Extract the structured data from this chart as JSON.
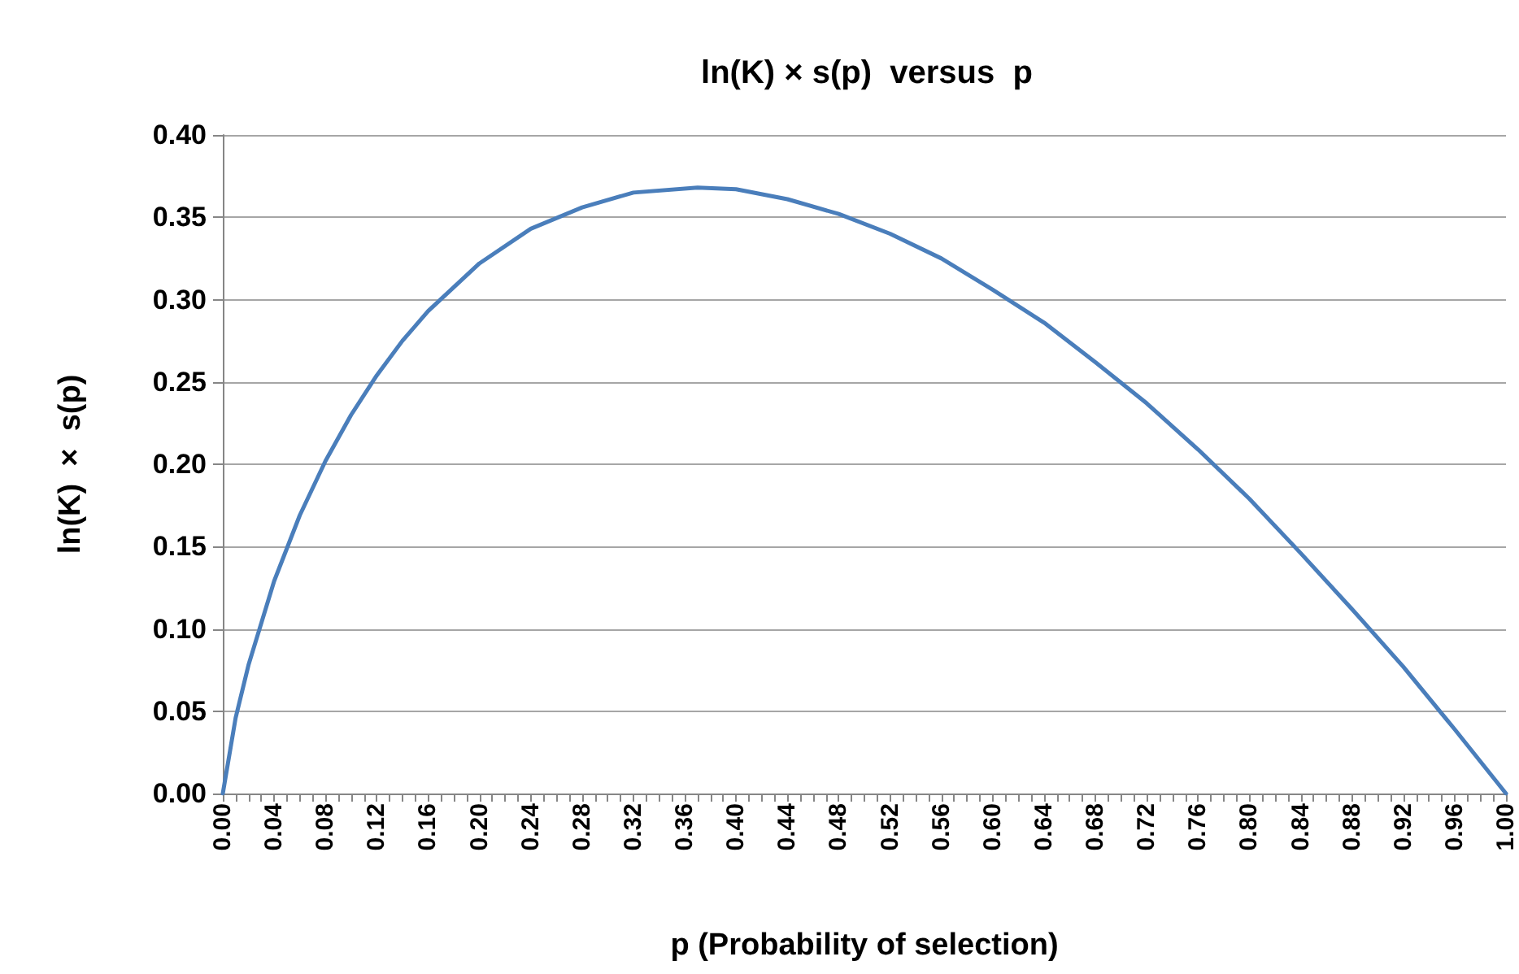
{
  "chart_data": {
    "type": "line",
    "title": "ln(K) × s(p)  versus  p",
    "xlabel": "p (Probability of selection)",
    "ylabel": "ln(K)  ×  s(p)",
    "series": [
      {
        "color": "#4a7ebb",
        "x": [
          0,
          0.01,
          0.02,
          0.04,
          0.06,
          0.08,
          0.1,
          0.12,
          0.14,
          0.16,
          0.2,
          0.24,
          0.28,
          0.32,
          0.37,
          0.4,
          0.44,
          0.48,
          0.52,
          0.56,
          0.6,
          0.64,
          0.68,
          0.72,
          0.76,
          0.8,
          0.84,
          0.88,
          0.92,
          0.96,
          1.0
        ],
        "values": [
          0,
          0.046,
          0.078,
          0.129,
          0.169,
          0.202,
          0.23,
          0.254,
          0.275,
          0.293,
          0.322,
          0.343,
          0.356,
          0.365,
          0.368,
          0.367,
          0.361,
          0.352,
          0.34,
          0.325,
          0.306,
          0.286,
          0.262,
          0.237,
          0.209,
          0.179,
          0.146,
          0.112,
          0.077,
          0.039,
          0
        ]
      }
    ],
    "xlim": [
      0,
      1
    ],
    "xticks": [
      {
        "value": 0,
        "label": "0.00"
      },
      {
        "value": 0.01,
        "label": null
      },
      {
        "value": 0.02,
        "label": null
      },
      {
        "value": 0.03,
        "label": null
      },
      {
        "value": 0.04,
        "label": "0.04"
      },
      {
        "value": 0.05,
        "label": null
      },
      {
        "value": 0.06,
        "label": null
      },
      {
        "value": 0.07,
        "label": null
      },
      {
        "value": 0.08,
        "label": "0.08"
      },
      {
        "value": 0.09,
        "label": null
      },
      {
        "value": 0.1,
        "label": null
      },
      {
        "value": 0.11,
        "label": null
      },
      {
        "value": 0.12,
        "label": "0.12"
      },
      {
        "value": 0.13,
        "label": null
      },
      {
        "value": 0.14,
        "label": null
      },
      {
        "value": 0.15,
        "label": null
      },
      {
        "value": 0.16,
        "label": "0.16"
      },
      {
        "value": 0.17,
        "label": null
      },
      {
        "value": 0.18,
        "label": null
      },
      {
        "value": 0.19,
        "label": null
      },
      {
        "value": 0.2,
        "label": "0.20"
      },
      {
        "value": 0.21,
        "label": null
      },
      {
        "value": 0.22,
        "label": null
      },
      {
        "value": 0.23,
        "label": null
      },
      {
        "value": 0.24,
        "label": "0.24"
      },
      {
        "value": 0.25,
        "label": null
      },
      {
        "value": 0.26,
        "label": null
      },
      {
        "value": 0.27,
        "label": null
      },
      {
        "value": 0.28,
        "label": "0.28"
      },
      {
        "value": 0.29,
        "label": null
      },
      {
        "value": 0.3,
        "label": null
      },
      {
        "value": 0.31,
        "label": null
      },
      {
        "value": 0.32,
        "label": "0.32"
      },
      {
        "value": 0.33,
        "label": null
      },
      {
        "value": 0.34,
        "label": null
      },
      {
        "value": 0.35,
        "label": null
      },
      {
        "value": 0.36,
        "label": "0.36"
      },
      {
        "value": 0.37,
        "label": null
      },
      {
        "value": 0.38,
        "label": null
      },
      {
        "value": 0.39,
        "label": null
      },
      {
        "value": 0.4,
        "label": "0.40"
      },
      {
        "value": 0.41,
        "label": null
      },
      {
        "value": 0.42,
        "label": null
      },
      {
        "value": 0.43,
        "label": null
      },
      {
        "value": 0.44,
        "label": "0.44"
      },
      {
        "value": 0.45,
        "label": null
      },
      {
        "value": 0.46,
        "label": null
      },
      {
        "value": 0.47,
        "label": null
      },
      {
        "value": 0.48,
        "label": "0.48"
      },
      {
        "value": 0.49,
        "label": null
      },
      {
        "value": 0.5,
        "label": null
      },
      {
        "value": 0.51,
        "label": null
      },
      {
        "value": 0.52,
        "label": "0.52"
      },
      {
        "value": 0.53,
        "label": null
      },
      {
        "value": 0.54,
        "label": null
      },
      {
        "value": 0.55,
        "label": null
      },
      {
        "value": 0.56,
        "label": "0.56"
      },
      {
        "value": 0.57,
        "label": null
      },
      {
        "value": 0.58,
        "label": null
      },
      {
        "value": 0.59,
        "label": null
      },
      {
        "value": 0.6,
        "label": "0.60"
      },
      {
        "value": 0.61,
        "label": null
      },
      {
        "value": 0.62,
        "label": null
      },
      {
        "value": 0.63,
        "label": null
      },
      {
        "value": 0.64,
        "label": "0.64"
      },
      {
        "value": 0.65,
        "label": null
      },
      {
        "value": 0.66,
        "label": null
      },
      {
        "value": 0.67,
        "label": null
      },
      {
        "value": 0.68,
        "label": "0.68"
      },
      {
        "value": 0.69,
        "label": null
      },
      {
        "value": 0.7,
        "label": null
      },
      {
        "value": 0.71,
        "label": null
      },
      {
        "value": 0.72,
        "label": "0.72"
      },
      {
        "value": 0.73,
        "label": null
      },
      {
        "value": 0.74,
        "label": null
      },
      {
        "value": 0.75,
        "label": null
      },
      {
        "value": 0.76,
        "label": "0.76"
      },
      {
        "value": 0.77,
        "label": null
      },
      {
        "value": 0.78,
        "label": null
      },
      {
        "value": 0.79,
        "label": null
      },
      {
        "value": 0.8,
        "label": "0.80"
      },
      {
        "value": 0.81,
        "label": null
      },
      {
        "value": 0.82,
        "label": null
      },
      {
        "value": 0.83,
        "label": null
      },
      {
        "value": 0.84,
        "label": "0.84"
      },
      {
        "value": 0.85,
        "label": null
      },
      {
        "value": 0.86,
        "label": null
      },
      {
        "value": 0.87,
        "label": null
      },
      {
        "value": 0.88,
        "label": "0.88"
      },
      {
        "value": 0.89,
        "label": null
      },
      {
        "value": 0.9,
        "label": null
      },
      {
        "value": 0.91,
        "label": null
      },
      {
        "value": 0.92,
        "label": "0.92"
      },
      {
        "value": 0.93,
        "label": null
      },
      {
        "value": 0.94,
        "label": null
      },
      {
        "value": 0.95,
        "label": null
      },
      {
        "value": 0.96,
        "label": "0.96"
      },
      {
        "value": 0.97,
        "label": null
      },
      {
        "value": 0.98,
        "label": null
      },
      {
        "value": 0.99,
        "label": null
      },
      {
        "value": 1,
        "label": "1.00"
      }
    ],
    "ylim": [
      0,
      0.4
    ],
    "yticks": [
      {
        "value": 0,
        "label": "0.00"
      },
      {
        "value": 0.05,
        "label": "0.05"
      },
      {
        "value": 0.1,
        "label": "0.10"
      },
      {
        "value": 0.15,
        "label": "0.15"
      },
      {
        "value": 0.2,
        "label": "0.20"
      },
      {
        "value": 0.25,
        "label": "0.25"
      },
      {
        "value": 0.3,
        "label": "0.30"
      },
      {
        "value": 0.35,
        "label": "0.35"
      },
      {
        "value": 0.4,
        "label": "0.40"
      }
    ],
    "grid": "y",
    "line_style": "solid"
  }
}
